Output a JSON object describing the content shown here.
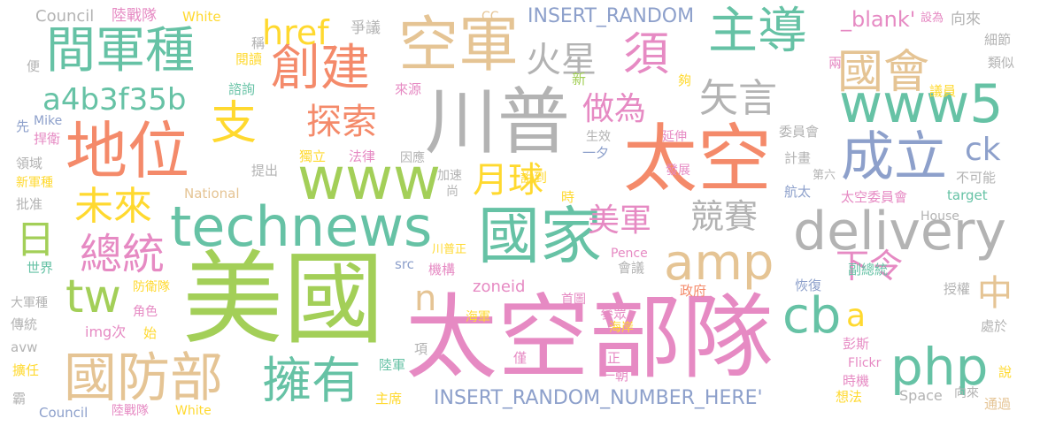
{
  "palette": {
    "green": "#a3cf58",
    "pink": "#e68ac3",
    "orange": "#f48a6a",
    "teal": "#66c2a5",
    "tan": "#e5c494",
    "gray": "#b3b3b3",
    "blue": "#8da0cb",
    "yellow": "#ffd92f"
  },
  "words": [
    {
      "text": "美國",
      "color": "green",
      "orientation": "horizontal"
    },
    {
      "text": "太空部隊",
      "color": "pink",
      "orientation": "horizontal"
    },
    {
      "text": "太空",
      "color": "orange",
      "orientation": "horizontal"
    },
    {
      "text": "川普",
      "color": "gray",
      "orientation": "horizontal"
    },
    {
      "text": "國家",
      "color": "teal",
      "orientation": "horizontal"
    },
    {
      "text": "空軍",
      "color": "tan",
      "orientation": "horizontal"
    },
    {
      "text": "地位",
      "color": "orange",
      "orientation": "horizontal"
    },
    {
      "text": "technews",
      "color": "teal",
      "orientation": "horizontal"
    },
    {
      "text": "delivery",
      "color": "gray",
      "orientation": "horizontal"
    },
    {
      "text": "www",
      "color": "green",
      "orientation": "horizontal"
    },
    {
      "text": "國防部",
      "color": "tan",
      "orientation": "horizontal"
    },
    {
      "text": "擁有",
      "color": "teal",
      "orientation": "horizontal"
    },
    {
      "text": "php",
      "color": "teal",
      "orientation": "horizontal"
    },
    {
      "text": "amp",
      "color": "tan",
      "orientation": "horizontal"
    },
    {
      "text": "成立",
      "color": "blue",
      "orientation": "horizontal"
    },
    {
      "text": "www5",
      "color": "teal",
      "orientation": "horizontal"
    },
    {
      "text": "主導",
      "color": "teal",
      "orientation": "horizontal"
    },
    {
      "text": "國會",
      "color": "tan",
      "orientation": "horizontal"
    },
    {
      "text": "間軍種",
      "color": "teal",
      "orientation": "horizontal"
    },
    {
      "text": "創建",
      "color": "orange",
      "orientation": "horizontal"
    },
    {
      "text": "須",
      "color": "pink",
      "orientation": "horizontal"
    },
    {
      "text": "cb",
      "color": "teal",
      "orientation": "horizontal"
    },
    {
      "text": "tw",
      "color": "green",
      "orientation": "horizontal"
    },
    {
      "text": "總統",
      "color": "pink",
      "orientation": "horizontal"
    },
    {
      "text": "支",
      "color": "yellow",
      "orientation": "horizontal"
    },
    {
      "text": "探索",
      "color": "orange",
      "orientation": "horizontal"
    },
    {
      "text": "未來",
      "color": "yellow",
      "orientation": "horizontal"
    },
    {
      "text": "火星",
      "color": "gray",
      "orientation": "horizontal"
    },
    {
      "text": "矢言",
      "color": "gray",
      "orientation": "horizontal"
    },
    {
      "text": "做為",
      "color": "pink",
      "orientation": "horizontal"
    },
    {
      "text": "月球",
      "color": "yellow",
      "orientation": "horizontal"
    },
    {
      "text": "競賽",
      "color": "gray",
      "orientation": "horizontal"
    },
    {
      "text": "美軍",
      "color": "pink",
      "orientation": "horizontal"
    },
    {
      "text": "a4b3f35b",
      "color": "teal",
      "orientation": "horizontal"
    },
    {
      "text": "href",
      "color": "yellow",
      "orientation": "horizontal"
    },
    {
      "text": "日",
      "color": "green",
      "orientation": "horizontal"
    },
    {
      "text": "下令",
      "color": "pink",
      "orientation": "horizontal"
    },
    {
      "text": "中",
      "color": "tan",
      "orientation": "horizontal"
    },
    {
      "text": "ck",
      "color": "blue",
      "orientation": "horizontal"
    },
    {
      "text": "n",
      "color": "tan",
      "orientation": "horizontal"
    },
    {
      "text": "a",
      "color": "yellow",
      "orientation": "horizontal"
    },
    {
      "text": "INSERT_RANDOM_NUMBER_HERE'",
      "color": "blue",
      "orientation": "horizontal"
    },
    {
      "text": "INSERT_RANDOM",
      "color": "blue",
      "orientation": "horizontal"
    },
    {
      "text": "Council",
      "color": "gray",
      "orientation": "horizontal"
    },
    {
      "text": "陸戰隊",
      "color": "pink",
      "orientation": "horizontal"
    },
    {
      "text": "White",
      "color": "yellow",
      "orientation": "horizontal"
    },
    {
      "text": "CC",
      "color": "tan",
      "orientation": "horizontal"
    },
    {
      "text": "爭議",
      "color": "gray",
      "orientation": "horizontal"
    },
    {
      "text": "_blank'",
      "color": "pink",
      "orientation": "horizontal"
    },
    {
      "text": "向來",
      "color": "gray",
      "orientation": "horizontal"
    },
    {
      "text": "細節",
      "color": "gray",
      "orientation": "horizontal"
    },
    {
      "text": "類似",
      "color": "gray",
      "orientation": "horizontal"
    },
    {
      "text": "兩",
      "color": "pink",
      "orientation": "horizontal"
    },
    {
      "text": "議員",
      "color": "yellow",
      "orientation": "horizontal"
    },
    {
      "text": "夠",
      "color": "yellow",
      "orientation": "horizontal"
    },
    {
      "text": "新",
      "color": "green",
      "orientation": "horizontal"
    },
    {
      "text": "來源",
      "color": "pink",
      "orientation": "horizontal"
    },
    {
      "text": "諮詢",
      "color": "teal",
      "orientation": "horizontal"
    },
    {
      "text": "稱",
      "color": "gray",
      "orientation": "horizontal"
    },
    {
      "text": "閱讀",
      "color": "yellow",
      "orientation": "horizontal"
    },
    {
      "text": "便",
      "color": "gray",
      "orientation": "horizontal"
    },
    {
      "text": "先",
      "color": "blue",
      "orientation": "horizontal"
    },
    {
      "text": "Mike",
      "color": "blue",
      "orientation": "horizontal"
    },
    {
      "text": "捍衛",
      "color": "pink",
      "orientation": "horizontal"
    },
    {
      "text": "領域",
      "color": "gray",
      "orientation": "horizontal"
    },
    {
      "text": "新軍種",
      "color": "yellow",
      "orientation": "horizontal"
    },
    {
      "text": "批准",
      "color": "gray",
      "orientation": "horizontal"
    },
    {
      "text": "世界",
      "color": "teal",
      "orientation": "horizontal"
    },
    {
      "text": "大軍種",
      "color": "gray",
      "orientation": "horizontal"
    },
    {
      "text": "傳統",
      "color": "gray",
      "orientation": "horizontal"
    },
    {
      "text": "avw",
      "color": "gray",
      "orientation": "horizontal"
    },
    {
      "text": "擴任",
      "color": "yellow",
      "orientation": "horizontal"
    },
    {
      "text": "霸",
      "color": "gray",
      "orientation": "horizontal"
    },
    {
      "text": "Council",
      "color": "blue",
      "orientation": "horizontal"
    },
    {
      "text": "陸戰隊",
      "color": "pink",
      "orientation": "horizontal"
    },
    {
      "text": "White",
      "color": "yellow",
      "orientation": "horizontal"
    },
    {
      "text": "防衛隊",
      "color": "yellow",
      "orientation": "horizontal"
    },
    {
      "text": "角色",
      "color": "pink",
      "orientation": "horizontal"
    },
    {
      "text": "img次",
      "color": "pink",
      "orientation": "horizontal"
    },
    {
      "text": "始",
      "color": "yellow",
      "orientation": "horizontal"
    },
    {
      "text": "National",
      "color": "tan",
      "orientation": "horizontal"
    },
    {
      "text": "提出",
      "color": "gray",
      "orientation": "horizontal"
    },
    {
      "text": "獨立",
      "color": "yellow",
      "orientation": "horizontal"
    },
    {
      "text": "法律",
      "color": "pink",
      "orientation": "horizontal"
    },
    {
      "text": "因應",
      "color": "gray",
      "orientation": "horizontal"
    },
    {
      "text": "生效",
      "color": "gray",
      "orientation": "horizontal"
    },
    {
      "text": "一夕",
      "color": "blue",
      "orientation": "horizontal"
    },
    {
      "text": "延伸",
      "color": "pink",
      "orientation": "horizontal"
    },
    {
      "text": "加速",
      "color": "gray",
      "orientation": "horizontal"
    },
    {
      "text": "說到",
      "color": "yellow",
      "orientation": "horizontal"
    },
    {
      "text": "發展",
      "color": "pink",
      "orientation": "horizontal"
    },
    {
      "text": "委員會",
      "color": "gray",
      "orientation": "horizontal"
    },
    {
      "text": "計畫",
      "color": "gray",
      "orientation": "horizontal"
    },
    {
      "text": "航太",
      "color": "blue",
      "orientation": "horizontal"
    },
    {
      "text": "第六",
      "color": "gray",
      "orientation": "horizontal"
    },
    {
      "text": "不可能",
      "color": "gray",
      "orientation": "horizontal"
    },
    {
      "text": "太空委員會",
      "color": "pink",
      "orientation": "horizontal"
    },
    {
      "text": "target",
      "color": "teal",
      "orientation": "horizontal"
    },
    {
      "text": "House",
      "color": "gray",
      "orientation": "horizontal"
    },
    {
      "text": "尚",
      "color": "gray",
      "orientation": "horizontal"
    },
    {
      "text": "時",
      "color": "yellow",
      "orientation": "horizontal"
    },
    {
      "text": "src",
      "color": "blue",
      "orientation": "horizontal"
    },
    {
      "text": "川普正",
      "color": "yellow",
      "orientation": "horizontal"
    },
    {
      "text": "Pence",
      "color": "pink",
      "orientation": "horizontal"
    },
    {
      "text": "機構",
      "color": "pink",
      "orientation": "horizontal"
    },
    {
      "text": "會議",
      "color": "gray",
      "orientation": "horizontal"
    },
    {
      "text": "副總統",
      "color": "teal",
      "orientation": "horizontal"
    },
    {
      "text": "恢復",
      "color": "blue",
      "orientation": "horizontal"
    },
    {
      "text": "授權",
      "color": "gray",
      "orientation": "horizontal"
    },
    {
      "text": "zoneid",
      "color": "pink",
      "orientation": "horizontal"
    },
    {
      "text": "首圖",
      "color": "pink",
      "orientation": "horizontal"
    },
    {
      "text": "政府",
      "color": "orange",
      "orientation": "horizontal"
    },
    {
      "text": "參眾",
      "color": "pink",
      "orientation": "horizontal"
    },
    {
      "text": "海軍",
      "color": "yellow",
      "orientation": "horizontal"
    },
    {
      "text": "海岸",
      "color": "yellow",
      "orientation": "horizontal"
    },
    {
      "text": "處於",
      "color": "gray",
      "orientation": "horizontal"
    },
    {
      "text": "彭斯",
      "color": "pink",
      "orientation": "horizontal"
    },
    {
      "text": "項",
      "color": "gray",
      "orientation": "horizontal"
    },
    {
      "text": "僅",
      "color": "pink",
      "orientation": "horizontal"
    },
    {
      "text": "正",
      "color": "pink",
      "orientation": "horizontal"
    },
    {
      "text": "一朝",
      "color": "pink",
      "orientation": "horizontal"
    },
    {
      "text": "陸軍",
      "color": "teal",
      "orientation": "horizontal"
    },
    {
      "text": "時機",
      "color": "pink",
      "orientation": "horizontal"
    },
    {
      "text": "Flickr",
      "color": "pink",
      "orientation": "horizontal"
    },
    {
      "text": "說",
      "color": "yellow",
      "orientation": "horizontal"
    },
    {
      "text": "Space",
      "color": "gray",
      "orientation": "horizontal"
    },
    {
      "text": "向來",
      "color": "gray",
      "orientation": "horizontal"
    },
    {
      "text": "通過",
      "color": "tan",
      "orientation": "horizontal"
    },
    {
      "text": "想法",
      "color": "yellow",
      "orientation": "horizontal"
    },
    {
      "text": "主席",
      "color": "yellow",
      "orientation": "horizontal"
    },
    {
      "text": "設為",
      "color": "pink",
      "orientation": "horizontal"
    }
  ]
}
